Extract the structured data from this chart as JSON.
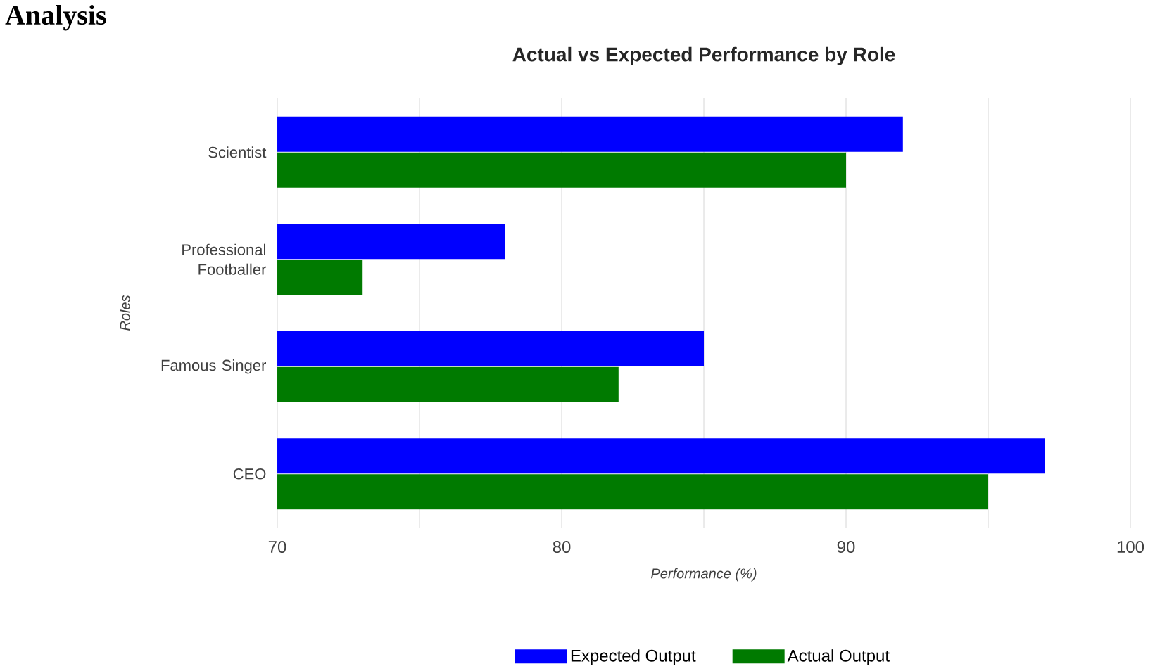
{
  "chart_data": {
    "type": "bar",
    "orientation": "horizontal",
    "title": "Actual vs Expected Performance by Role",
    "xlabel": "Performance (%)",
    "ylabel": "Roles",
    "annotations": [
      "Analysis"
    ],
    "categories": [
      "Scientist",
      "Professional Footballer",
      "Famous Singer",
      "CEO"
    ],
    "series": [
      {
        "name": "Expected Output",
        "color": "#0000ff",
        "values": [
          92,
          78,
          85,
          97
        ]
      },
      {
        "name": "Actual Output",
        "color": "#007a00",
        "values": [
          90,
          73,
          82,
          95
        ]
      }
    ],
    "xlim": [
      70,
      100
    ],
    "xticks": [
      70,
      {
        "value": 75,
        "label": null
      },
      80,
      {
        "value": 85,
        "label": null
      },
      90,
      {
        "value": 95,
        "label": null
      },
      100
    ],
    "grid": "x",
    "legend": "bottom"
  }
}
